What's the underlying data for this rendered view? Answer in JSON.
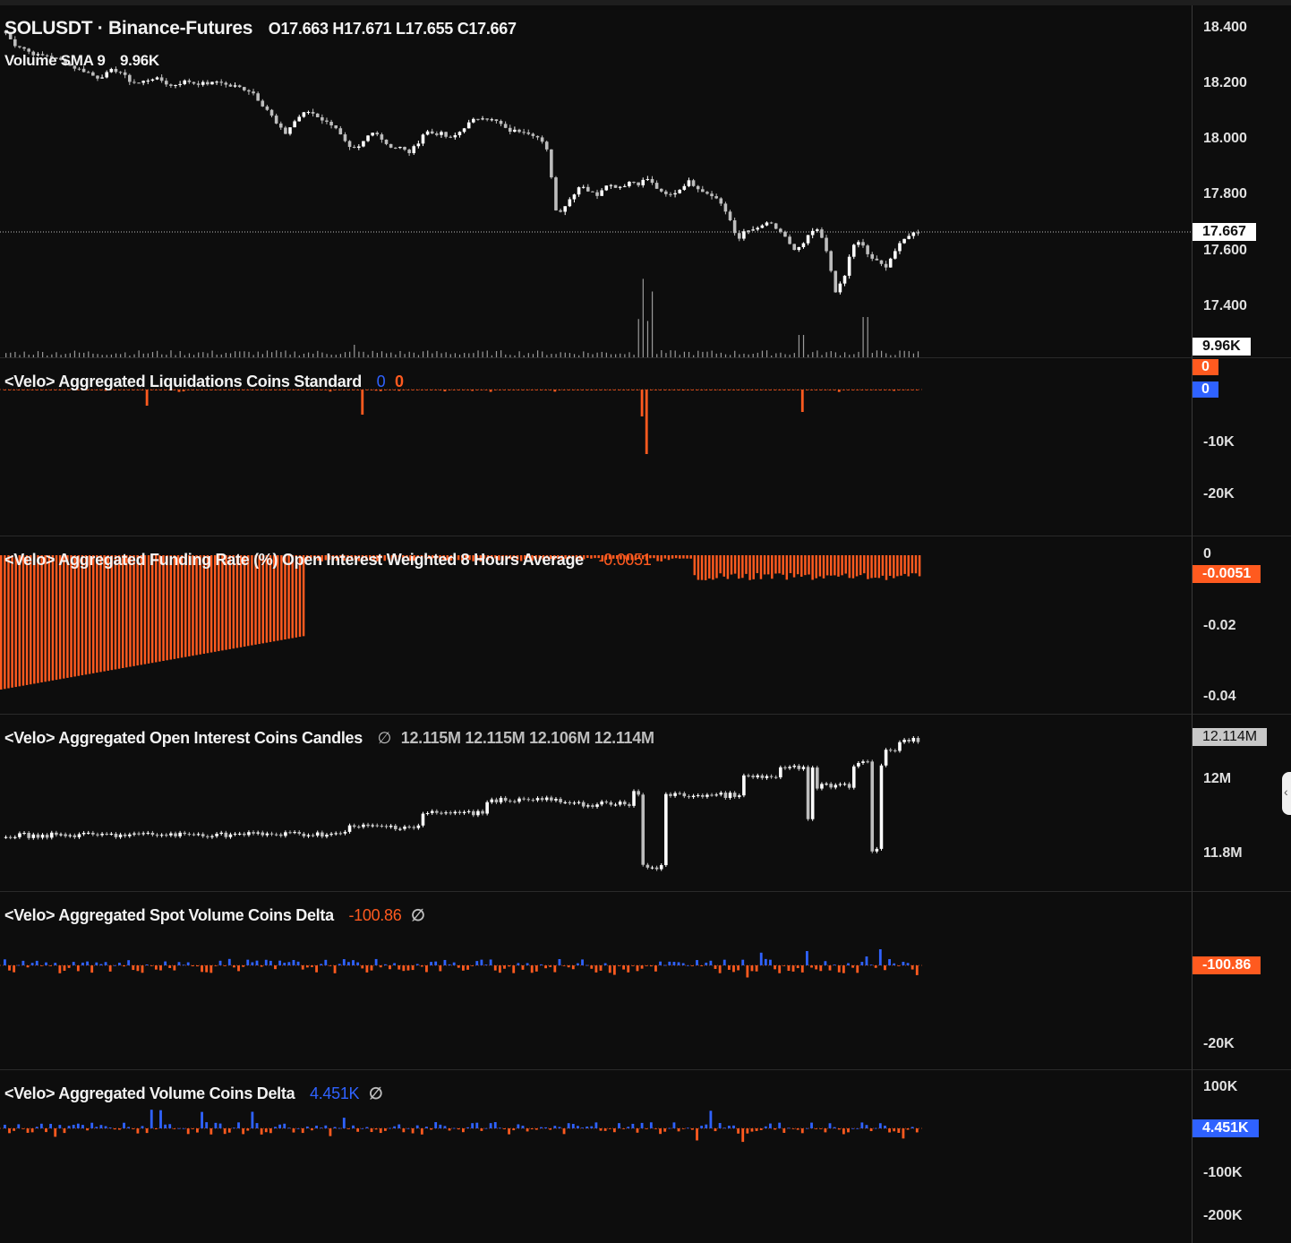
{
  "colors": {
    "up": "#ffffff",
    "down": "#bdbdbd",
    "bear": "#ff5a1f",
    "bull": "#2f62ff",
    "grid": "#2a2a2a",
    "bg": "#0d0d0d"
  },
  "icons": {
    "collapse": "chevron-left-icon"
  },
  "main": {
    "symbol": "SOLUSDT · Binance-Futures",
    "ohlc": "O17.663  H17.671  L17.655  C17.667",
    "volume_label": "Volume SMA 9",
    "volume_value": "9.96K",
    "axis_ticks": [
      "18.400",
      "18.200",
      "18.000",
      "17.800",
      "17.600",
      "17.400"
    ],
    "last_price": "17.667",
    "last_volume": "9.96K"
  },
  "liq": {
    "title": "<Velo> Aggregated Liquidations Coins Standard",
    "v1": "0",
    "v2": "0",
    "axis_ticks": [
      "-10K",
      "-20K"
    ],
    "badge_top": "0",
    "badge_bottom": "0"
  },
  "funding": {
    "title": "<Velo> Aggregated Funding Rate (%) Open Interest Weighted 8 Hours Average",
    "value": "-0.0051",
    "axis_ticks": [
      "0",
      "-0.02",
      "-0.04"
    ],
    "badge": "-0.0051"
  },
  "oi": {
    "title": "<Velo> Aggregated Open Interest Coins Candles",
    "symbol": "∅",
    "values": "12.115M  12.115M  12.106M  12.114M",
    "axis_ticks": [
      "12M",
      "11.8M"
    ],
    "badge": "12.114M"
  },
  "spot": {
    "title": "<Velo> Aggregated Spot Volume Coins Delta",
    "value": "-100.86",
    "symbol": "∅",
    "axis_ticks": [
      "-20K"
    ],
    "badge": "-100.86"
  },
  "vol": {
    "title": "<Velo> Aggregated Volume Coins Delta",
    "value": "4.451K",
    "symbol": "∅",
    "axis_ticks": [
      "100K",
      "-100K",
      "-200K"
    ],
    "badge": "4.451K"
  },
  "chart_data": [
    {
      "type": "candlestick",
      "title": "SOLUSDT · Binance-Futures",
      "ylim": [
        17.2,
        18.5
      ],
      "close": [
        18.38,
        18.34,
        18.33,
        18.31,
        18.3,
        18.3,
        18.29,
        18.28,
        18.26,
        18.25,
        18.24,
        18.22,
        18.23,
        18.25,
        18.24,
        18.21,
        18.2,
        18.21,
        18.22,
        18.21,
        18.19,
        18.2,
        18.21,
        18.2,
        18.2,
        18.2,
        18.21,
        18.19,
        18.19,
        18.18,
        18.17,
        18.13,
        18.1,
        18.05,
        18.02,
        18.06,
        18.09,
        18.1,
        18.08,
        18.06,
        18.05,
        18.0,
        17.96,
        17.97,
        18.01,
        18.03,
        17.99,
        17.97,
        17.97,
        17.95,
        17.98,
        18.03,
        18.02,
        18.02,
        18.0,
        18.02,
        18.05,
        18.07,
        18.08,
        18.07,
        18.06,
        18.03,
        18.03,
        18.03,
        18.02,
        18.0,
        17.95,
        17.73,
        17.76,
        17.8,
        17.84,
        17.81,
        17.8,
        17.84,
        17.83,
        17.83,
        17.85,
        17.84,
        17.86,
        17.83,
        17.8,
        17.8,
        17.82,
        17.85,
        17.83,
        17.81,
        17.8,
        17.77,
        17.72,
        17.63,
        17.68,
        17.67,
        17.69,
        17.7,
        17.67,
        17.64,
        17.6,
        17.62,
        17.67,
        17.67,
        17.58,
        17.45,
        17.5,
        17.62,
        17.63,
        17.58,
        17.56,
        17.54,
        17.59,
        17.63,
        17.66,
        17.667
      ]
    },
    {
      "type": "bar",
      "title": "Volume SMA 9",
      "values": []
    },
    {
      "type": "bar",
      "title": "<Velo> Aggregated Liquidations Coins Standard",
      "ylim": [
        -26000,
        2000
      ],
      "series": [
        {
          "name": "",
          "values": []
        }
      ]
    },
    {
      "type": "bar",
      "title": "<Velo> Aggregated Funding Rate (%) Open Interest Weighted 8 Hours Average",
      "ylim": [
        -0.046,
        0.002
      ],
      "values": []
    },
    {
      "type": "candlestick",
      "title": "<Velo> Aggregated Open Interest Coins Candles",
      "ylim": [
        11.7,
        12.18
      ],
      "close": []
    },
    {
      "type": "bar",
      "title": "<Velo> Aggregated Spot Volume Coins Delta",
      "ylim": [
        -23000,
        12000
      ],
      "values": []
    },
    {
      "type": "bar",
      "title": "<Velo> Aggregated Volume Coins Delta",
      "ylim": [
        -250000,
        110000
      ],
      "values": []
    }
  ]
}
